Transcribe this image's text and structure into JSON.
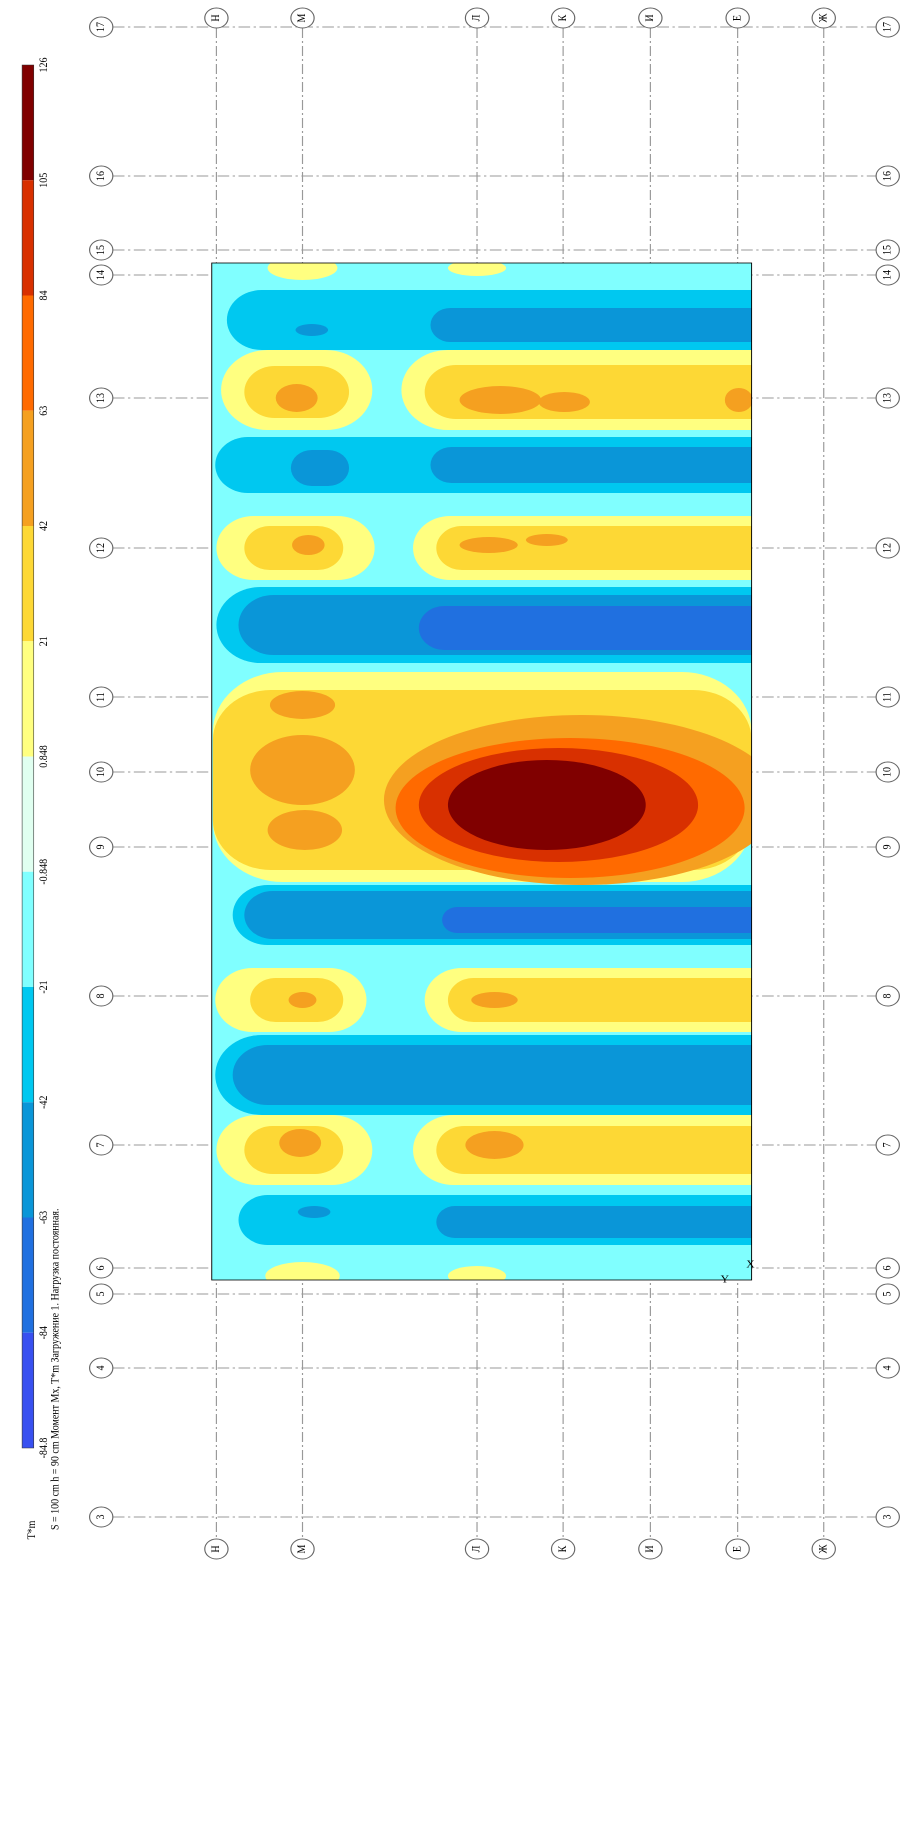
{
  "legend": {
    "unit": "T*m",
    "labels": [
      "126",
      "105",
      "84",
      "63",
      "42",
      "21",
      "0.848",
      "-0.848",
      "-21",
      "-42",
      "-63",
      "-84",
      "-84.8"
    ]
  },
  "caption": "S = 100 cm  h = 90 cm  Момент Mx, T*m  Загружение 1.   Нагрузка постоянная.",
  "axes": {
    "numbers": [
      "17",
      "16",
      "15",
      "14",
      "13",
      "12",
      "11",
      "10",
      "9",
      "8",
      "7",
      "6",
      "5",
      "4",
      "3"
    ],
    "letters": [
      "Н",
      "М",
      "Л",
      "К",
      "И",
      "Е",
      "Ж"
    ]
  },
  "plate": {
    "x_axis": "X",
    "y_axis": "Y"
  }
}
